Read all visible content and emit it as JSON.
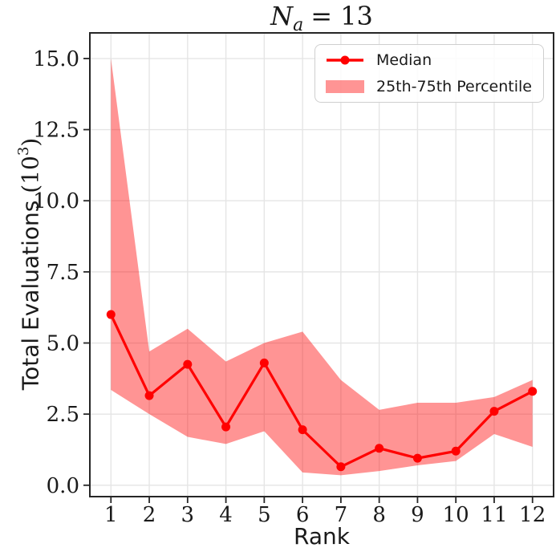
{
  "title": {
    "var": "N",
    "sub": "a",
    "eq": "= 13"
  },
  "xlabel": {
    "text": "Rank"
  },
  "ylabel": {
    "main": "Total Evaluations ",
    "paren_open": "(10",
    "sup": "3",
    "paren_close": ")"
  },
  "legend": {
    "position": "upper right",
    "items": [
      {
        "icon": "median-line-icon",
        "label": "Median"
      },
      {
        "icon": "percentile-band-swatch",
        "label": "25th-75th Percentile"
      }
    ]
  },
  "chart_data": {
    "type": "line",
    "title": "N_a = 13",
    "xlabel": "Rank",
    "ylabel": "Total Evaluations (10^3)",
    "x": [
      1,
      2,
      3,
      4,
      5,
      6,
      7,
      8,
      9,
      10,
      11,
      12
    ],
    "series": [
      {
        "name": "Median",
        "values": [
          6.0,
          3.15,
          4.25,
          2.05,
          4.3,
          1.95,
          0.65,
          1.3,
          0.95,
          1.2,
          2.6,
          3.3
        ]
      },
      {
        "name": "25th Percentile",
        "values": [
          3.35,
          2.5,
          1.7,
          1.45,
          1.9,
          0.45,
          0.35,
          0.5,
          0.7,
          0.85,
          1.8,
          1.35
        ]
      },
      {
        "name": "75th Percentile",
        "values": [
          15.0,
          4.7,
          5.5,
          4.35,
          5.0,
          5.4,
          3.7,
          2.65,
          2.9,
          2.9,
          3.1,
          3.7
        ]
      }
    ],
    "band": {
      "lower_series": "25th Percentile",
      "upper_series": "75th Percentile",
      "label": "25th-75th Percentile"
    },
    "xticks": [
      1,
      2,
      3,
      4,
      5,
      6,
      7,
      8,
      9,
      10,
      11,
      12
    ],
    "yticks": [
      0.0,
      2.5,
      5.0,
      7.5,
      10.0,
      12.5,
      15.0
    ],
    "ytick_labels": [
      "0.0",
      "2.5",
      "5.0",
      "7.5",
      "10.0",
      "12.5",
      "15.0"
    ],
    "xlim": [
      0.45,
      12.55
    ],
    "ylim": [
      -0.4,
      15.9
    ],
    "grid": true,
    "legend_position": "upper right",
    "colors": {
      "median_line": "#FF0000",
      "band_fill": "#FF0000",
      "band_opacity": 0.42,
      "grid": "#E5E5E5",
      "spine": "#262626",
      "text": "#1a1a1a"
    }
  }
}
